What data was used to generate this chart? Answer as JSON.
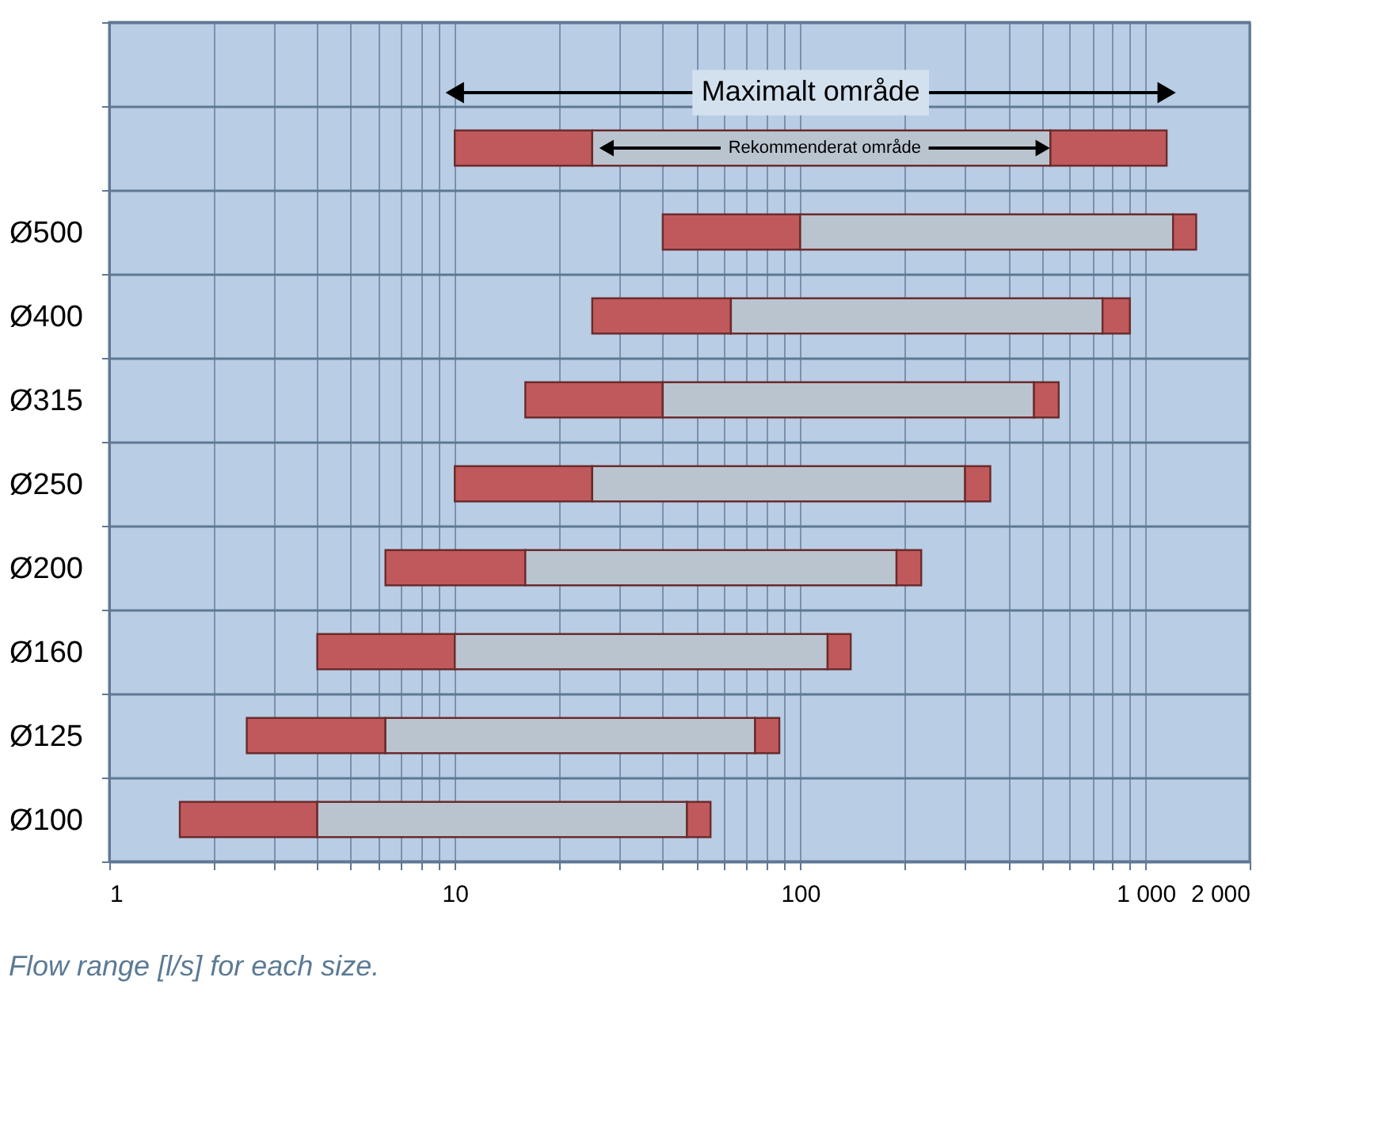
{
  "chart_data": {
    "type": "bar",
    "orientation": "horizontal",
    "categories": [
      null,
      "Ø500",
      "Ø400",
      "Ø315",
      "Ø250",
      "Ø200",
      "Ø160",
      "Ø125",
      "Ø100"
    ],
    "series": [
      {
        "color": "#c0595c",
        "base": [
          10,
          40,
          25,
          16,
          10,
          6.3,
          4,
          2.5,
          1.6
        ],
        "values": [
          15,
          60,
          38,
          24,
          15,
          9.7,
          6,
          3.8,
          2.4
        ]
      },
      {
        "color": "#b9c4cf",
        "base": [
          25,
          100,
          63,
          40,
          25,
          16,
          10,
          6.3,
          4
        ],
        "values": [
          505,
          1100,
          687,
          435,
          275,
          174,
          110,
          67.7,
          43
        ]
      },
      {
        "color": "#c0595c",
        "base": [
          530,
          1200,
          750,
          475,
          300,
          190,
          120,
          74,
          47
        ],
        "values": [
          620,
          200,
          150,
          85,
          55,
          34,
          20,
          13,
          8
        ]
      }
    ],
    "log": "x",
    "xlim": [
      1,
      2000
    ],
    "xticks": [
      1,
      {
        "value": 2,
        "label": null
      },
      {
        "value": 3,
        "label": null
      },
      {
        "value": 4,
        "label": null
      },
      {
        "value": 5,
        "label": null
      },
      {
        "value": 6,
        "label": null
      },
      {
        "value": 7,
        "label": null
      },
      {
        "value": 8,
        "label": null
      },
      {
        "value": 9,
        "label": null
      },
      10,
      {
        "value": 20,
        "label": null
      },
      {
        "value": 30,
        "label": null
      },
      {
        "value": 40,
        "label": null
      },
      {
        "value": 50,
        "label": null
      },
      {
        "value": 60,
        "label": null
      },
      {
        "value": 70,
        "label": null
      },
      {
        "value": 80,
        "label": null
      },
      {
        "value": 90,
        "label": null
      },
      100,
      {
        "value": 200,
        "label": null
      },
      {
        "value": 300,
        "label": null
      },
      {
        "value": 400,
        "label": null
      },
      {
        "value": 500,
        "label": null
      },
      {
        "value": 600,
        "label": null
      },
      {
        "value": 700,
        "label": null
      },
      {
        "value": 800,
        "label": null
      },
      {
        "value": 900,
        "label": null
      },
      {
        "value": 1000,
        "label": "1 000"
      },
      {
        "value": 2000,
        "label": "2 000"
      }
    ],
    "grid": true,
    "legend": false,
    "annotations": [
      "Maximalt område",
      "Rekommenderat område",
      "Flow range [l/s] for each size."
    ]
  }
}
